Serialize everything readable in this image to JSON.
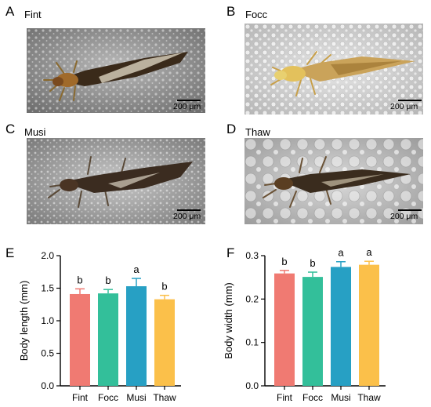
{
  "panels": {
    "A": {
      "letter": "A",
      "name": "Fint",
      "scale": "200 μm"
    },
    "B": {
      "letter": "B",
      "name": "Focc",
      "scale": "200 μm"
    },
    "C": {
      "letter": "C",
      "name": "Musi",
      "scale": "200 μm"
    },
    "D": {
      "letter": "D",
      "name": "Thaw",
      "scale": "200 μm"
    },
    "E": {
      "letter": "E"
    },
    "F": {
      "letter": "F"
    }
  },
  "colors": {
    "Fint": "#f07a72",
    "Focc": "#33bf9a",
    "Musi": "#27a0c4",
    "Thaw": "#fbc04a"
  },
  "chart_data": [
    {
      "type": "bar",
      "categories": [
        "Fint",
        "Focc",
        "Musi",
        "Thaw"
      ],
      "values": [
        1.41,
        1.42,
        1.53,
        1.33
      ],
      "errors": [
        0.08,
        0.06,
        0.12,
        0.06
      ],
      "labels": [
        "b",
        "b",
        "a",
        "b"
      ],
      "ylabel": "Body length (mm)",
      "ylim": [
        0,
        2.0
      ],
      "yticks": [
        "0.0",
        "0.5",
        "1.0",
        "1.5",
        "2.0"
      ],
      "ytick_values": [
        0,
        0.5,
        1.0,
        1.5,
        2.0
      ]
    },
    {
      "type": "bar",
      "categories": [
        "Fint",
        "Focc",
        "Musi",
        "Thaw"
      ],
      "values": [
        0.259,
        0.251,
        0.274,
        0.279
      ],
      "errors": [
        0.007,
        0.011,
        0.012,
        0.008
      ],
      "labels": [
        "b",
        "b",
        "a",
        "a"
      ],
      "ylabel": "Body width (mm)",
      "ylim": [
        0,
        0.3
      ],
      "yticks": [
        "0.0",
        "0.1",
        "0.2",
        "0.3"
      ],
      "ytick_values": [
        0,
        0.1,
        0.2,
        0.3
      ]
    }
  ]
}
